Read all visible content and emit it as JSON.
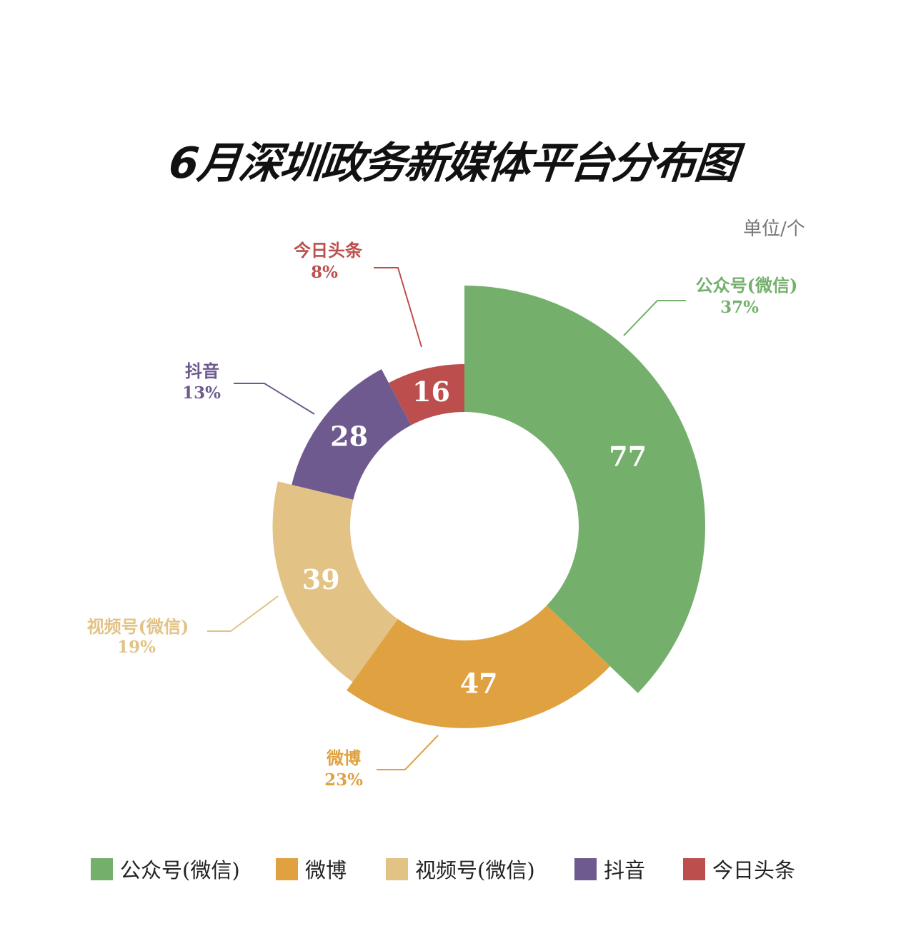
{
  "title": "6月深圳政务新媒体平台分布图",
  "unit": "单位/个",
  "chart_data": {
    "type": "pie",
    "variant": "rose-donut",
    "title": "6月深圳政务新媒体平台分布图",
    "unit": "单位/个",
    "categories": [
      "公众号(微信)",
      "微博",
      "视频号(微信)",
      "抖音",
      "今日头条"
    ],
    "values": [
      77,
      47,
      39,
      28,
      16
    ],
    "percent_labels": [
      "37%",
      "23%",
      "19%",
      "13%",
      "8%"
    ],
    "colors": [
      "#74b06c",
      "#e0a140",
      "#e2c285",
      "#6e5a8e",
      "#bc4f4e"
    ],
    "legend": "bottom"
  }
}
